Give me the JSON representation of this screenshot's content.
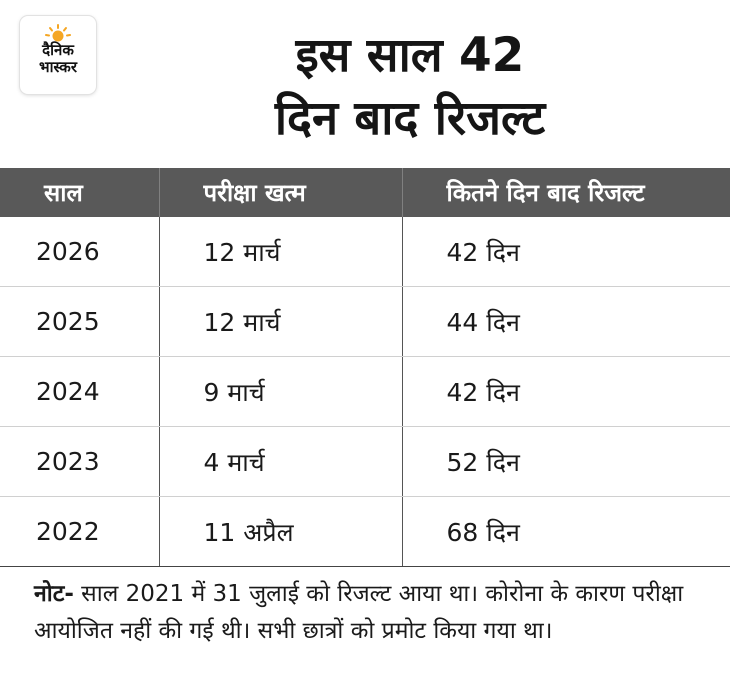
{
  "logo": {
    "line1": "दैनिक",
    "line2": "भास्कर",
    "icon": "sun-logo-icon",
    "sun_color": "#f5a623"
  },
  "headline": {
    "line1": "इस साल 42",
    "line2": "दिन बाद रिजल्ट"
  },
  "table": {
    "headers": [
      "साल",
      "परीक्षा खत्म",
      "कितने दिन बाद रिजल्ट"
    ],
    "rows": [
      [
        "2026",
        "12 मार्च",
        "42 दिन"
      ],
      [
        "2025",
        "12 मार्च",
        "44 दिन"
      ],
      [
        "2024",
        "9 मार्च",
        "42 दिन"
      ],
      [
        "2023",
        "4 मार्च",
        "52 दिन"
      ],
      [
        "2022",
        "11 अप्रैल",
        "68 दिन"
      ]
    ],
    "header_bg": "#595959"
  },
  "note": {
    "label": "नोट-",
    "text": " साल 2021 में 31 जुलाई को रिजल्ट आया था। कोरोना के कारण परीक्षा आयोजित नहीं की गई थी। सभी छात्रों को प्रमोट किया गया था।"
  }
}
